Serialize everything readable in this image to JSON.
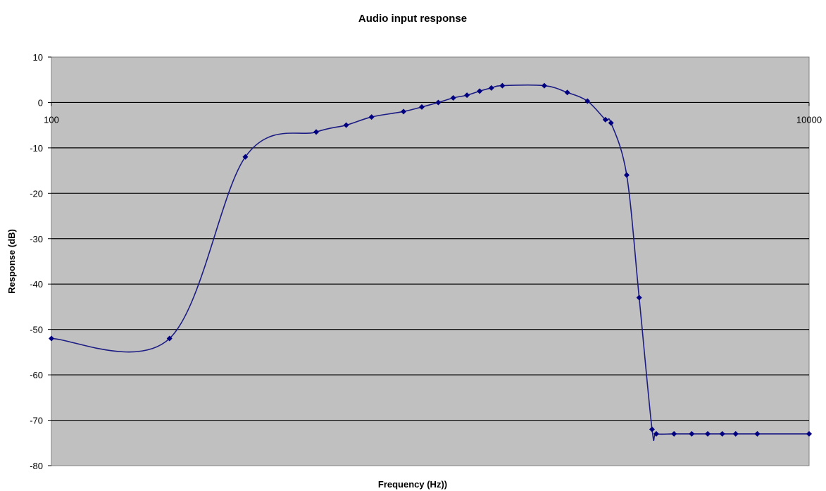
{
  "chart_data": {
    "type": "scatter",
    "title": "Audio input response",
    "xlabel": "Frequency (Hz))",
    "ylabel": "Response (dB)",
    "x_scale": "log",
    "xlim": [
      100,
      10000
    ],
    "ylim": [
      -80,
      10
    ],
    "x_tick_labels": [
      "100",
      "10000"
    ],
    "y_ticks": [
      10,
      0,
      -10,
      -20,
      -30,
      -40,
      -50,
      -60,
      -70,
      -80
    ],
    "grid": "horizontal",
    "legend": "none",
    "series": [
      {
        "style": "smoothed line with diamond markers",
        "points": [
          [
            100,
            -52
          ],
          [
            205,
            -52
          ],
          [
            325,
            -12
          ],
          [
            500,
            -6.5
          ],
          [
            600,
            -5
          ],
          [
            700,
            -3.2
          ],
          [
            850,
            -2
          ],
          [
            950,
            -1
          ],
          [
            1050,
            0
          ],
          [
            1150,
            1
          ],
          [
            1250,
            1.6
          ],
          [
            1350,
            2.5
          ],
          [
            1450,
            3.2
          ],
          [
            1550,
            3.7
          ],
          [
            2000,
            3.7
          ],
          [
            2300,
            2.2
          ],
          [
            2600,
            0.3
          ],
          [
            2900,
            -3.8
          ],
          [
            3000,
            -4.5
          ],
          [
            3300,
            -16
          ],
          [
            3560,
            -43
          ],
          [
            3850,
            -72
          ],
          [
            3950,
            -73
          ],
          [
            4400,
            -73
          ],
          [
            4900,
            -73
          ],
          [
            5400,
            -73
          ],
          [
            5900,
            -73
          ],
          [
            6400,
            -73
          ],
          [
            7300,
            -73
          ],
          [
            10000,
            -73
          ]
        ]
      }
    ],
    "colors": {
      "line": "#1c1c84",
      "marker": "#000080",
      "plot_area": "#c0c0c0",
      "gridline": "#000000"
    }
  }
}
